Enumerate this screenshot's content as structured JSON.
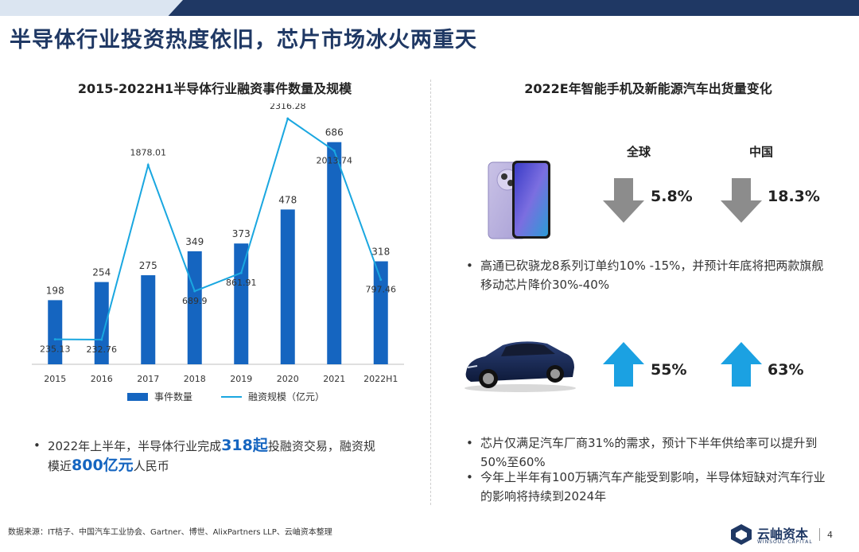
{
  "page": {
    "title": "半导体行业投资热度依旧，芯片市场冰火两重天",
    "source": "数据来源：IT桔子、中国汽车工业协会、Gartner、博世、AlixPartners LLP、云岫资本整理",
    "page_number": "4",
    "logo_text": "云岫资本",
    "logo_sub": "WINSOUL CAPITAL"
  },
  "left": {
    "title": "2015-2022H1半导体行业融资事件数量及规模",
    "legend_bar": "事件数量",
    "legend_line": "融资规模（亿元）",
    "bullet_pre": "2022年上半年，半导体行业完成",
    "bullet_hl1": "318起",
    "bullet_mid": "投融资交易，融资规",
    "bullet_pre2": "模近",
    "bullet_hl2": "800亿元",
    "bullet_post": "人民币"
  },
  "chart_data": {
    "type": "bar",
    "categories": [
      "2015",
      "2016",
      "2017",
      "2018",
      "2019",
      "2020",
      "2021",
      "2022H1"
    ],
    "series": [
      {
        "name": "事件数量",
        "type": "bar",
        "values": [
          198,
          254,
          275,
          349,
          373,
          478,
          686,
          318
        ],
        "color": "#1565c0"
      },
      {
        "name": "融资规模（亿元）",
        "type": "line",
        "values": [
          235.13,
          232.76,
          1878.01,
          689.9,
          861.91,
          2316.28,
          2013.74,
          797.46
        ],
        "color": "#1aa7e0"
      }
    ],
    "bar_ylim": [
      0,
      700
    ],
    "line_ylim": [
      0,
      2400
    ]
  },
  "right": {
    "title": "2022E年智能手机及新能源汽车出货量变化",
    "col_global": "全球",
    "col_china": "中国",
    "phone_global": "5.8%",
    "phone_china": "18.3%",
    "phone_bullet": "高通已砍骁龙8系列订单约10% -15%，并预计年底将把两款旗舰移动芯片降价30%-40%",
    "car_global": "55%",
    "car_china": "63%",
    "car_bullet1": "芯片仅满足汽车厂商31%的需求，预计下半年供给率可以提升到50%至60%",
    "car_bullet2": "今年上半年有100万辆汽车产能受到影响，半导体短缺对汽车行业的影响将持续到2024年",
    "colors": {
      "down": "#8c8c8c",
      "up": "#1ba1e2"
    }
  }
}
